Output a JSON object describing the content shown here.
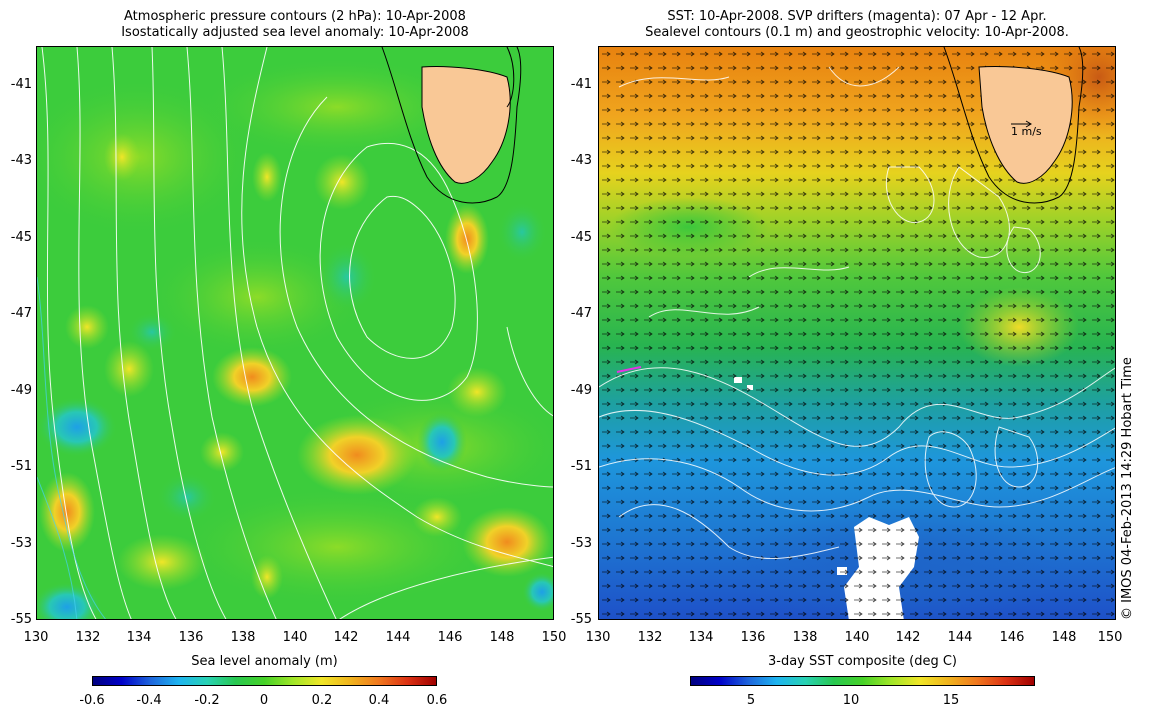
{
  "left_panel": {
    "title_line1": "Atmospheric pressure contours (2 hPa): 10-Apr-2008",
    "title_line2": "Isostatically adjusted sea level anomaly: 10-Apr-2008",
    "y_ticks": [
      "-41",
      "-43",
      "-45",
      "-47",
      "-49",
      "-51",
      "-53",
      "-55"
    ],
    "x_ticks": [
      "130",
      "132",
      "134",
      "136",
      "138",
      "140",
      "142",
      "144",
      "146",
      "148",
      "150"
    ],
    "colorbar_title": "Sea level anomaly (m)",
    "colorbar_ticks": [
      "-0.6",
      "-0.4",
      "-0.2",
      "0",
      "0.2",
      "0.4",
      "0.6"
    ],
    "colorbar_range": [
      -0.6,
      0.6
    ]
  },
  "right_panel": {
    "title_line1": "SST: 10-Apr-2008. SVP drifters (magenta): 07 Apr - 12 Apr.",
    "title_line2": "Sealevel contours (0.1 m) and geostrophic velocity: 10-Apr-2008.",
    "y_ticks": [
      "-41",
      "-43",
      "-45",
      "-47",
      "-49",
      "-51",
      "-53",
      "-55"
    ],
    "x_ticks": [
      "130",
      "132",
      "134",
      "136",
      "138",
      "140",
      "142",
      "144",
      "146",
      "148",
      "150"
    ],
    "scale_arrow_label": "1 m/s",
    "colorbar_title": "3-day SST composite (deg C)",
    "colorbar_ticks": [
      "5",
      "10",
      "15"
    ],
    "colorbar_range": [
      1.5,
      19.5
    ]
  },
  "copyright": "© IMOS 04-Feb-2013 14:29 Hobart Time",
  "map_extent": {
    "lon": [
      130,
      150
    ],
    "lat": [
      -55,
      -40
    ]
  },
  "colors": {
    "land": "#f9c896",
    "ocean_green": "#3cc83c",
    "cold_blue": "#1e64d2",
    "warm_orange": "#f0a020"
  }
}
